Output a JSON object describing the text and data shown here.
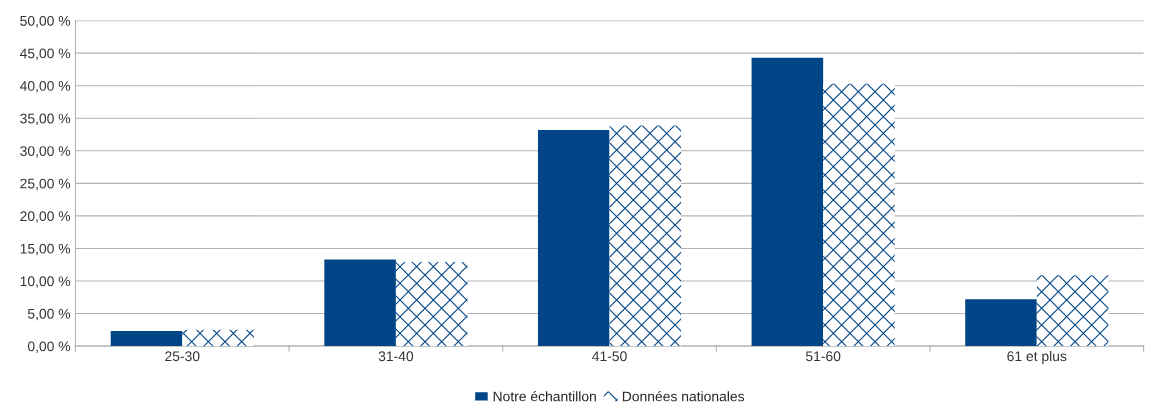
{
  "chart_data": {
    "type": "bar",
    "categories": [
      "25-30",
      "31-40",
      "41-50",
      "51-60",
      "61 et plus"
    ],
    "series": [
      {
        "name": "Notre échantillon",
        "color": "#004586",
        "values": [
          2.3,
          13.3,
          33.2,
          44.3,
          7.2
        ]
      },
      {
        "name": "Données nationales",
        "color": "#004586",
        "values": [
          2.5,
          12.9,
          33.9,
          40.3,
          10.9
        ]
      }
    ],
    "ylim": [
      0,
      50
    ],
    "yticks": [
      {
        "value": 0,
        "label": "0,00 %"
      },
      {
        "value": 5,
        "label": "5,00 %"
      },
      {
        "value": 10,
        "label": "10,00 %"
      },
      {
        "value": 15,
        "label": "15,00 %"
      },
      {
        "value": 20,
        "label": "20,00 %"
      },
      {
        "value": 25,
        "label": "25,00 %"
      },
      {
        "value": 30,
        "label": "30,00 %"
      },
      {
        "value": 35,
        "label": "35,00 %"
      },
      {
        "value": 40,
        "label": "40,00 %"
      },
      {
        "value": 45,
        "label": "45,00 %"
      },
      {
        "value": 50,
        "label": "50,00 %"
      }
    ],
    "grid": "y",
    "legend": "bottom"
  }
}
